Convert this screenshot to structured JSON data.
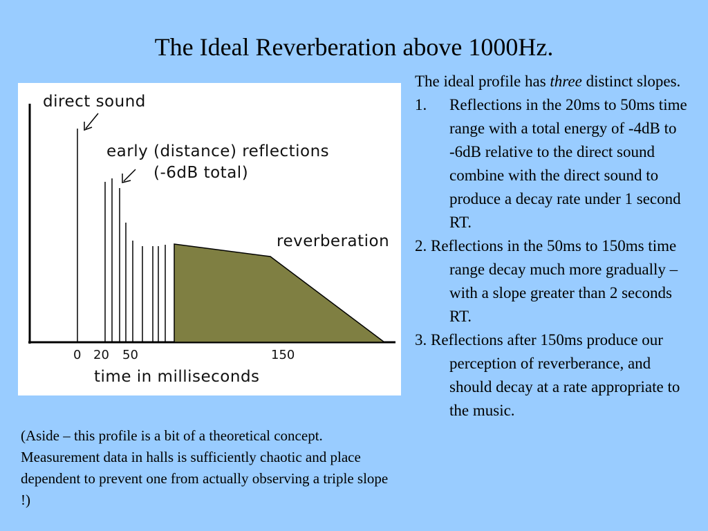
{
  "slide": {
    "title": "The Ideal Reverberation above 1000Hz."
  },
  "figure": {
    "labels": {
      "direct_sound": "direct sound",
      "early_reflections": "early (distance) reflections",
      "early_reflections_note": "(-6dB total)",
      "reverberation": "reverberation",
      "xlabel": "time in milliseconds"
    },
    "x_ticks": [
      "0",
      "20",
      "50",
      "150"
    ],
    "fill_color": "#7f7f42"
  },
  "text": {
    "intro_pre": "The ideal profile has ",
    "intro_em": "three",
    "intro_post": " distinct slopes.",
    "items": [
      {
        "num": "1.",
        "text": "Reflections in the 20ms to 50ms time range with a total energy of -4dB to -6dB relative to the direct sound combine with the direct sound to produce a decay rate under 1 second RT."
      },
      {
        "num": "2.",
        "text": "Reflections in the 50ms to 150ms time range decay much more gradually – with a slope greater than 2 seconds RT."
      },
      {
        "num": "3.",
        "text": "Reflections after 150ms produce our perception of reverberance, and should decay at a rate appropriate to the music."
      }
    ]
  },
  "aside": {
    "text": "(Aside – this profile is a bit of a theoretical concept. Measurement data in halls is sufficiently chaotic and place dependent to prevent one from actually observing a triple slope !)"
  }
}
